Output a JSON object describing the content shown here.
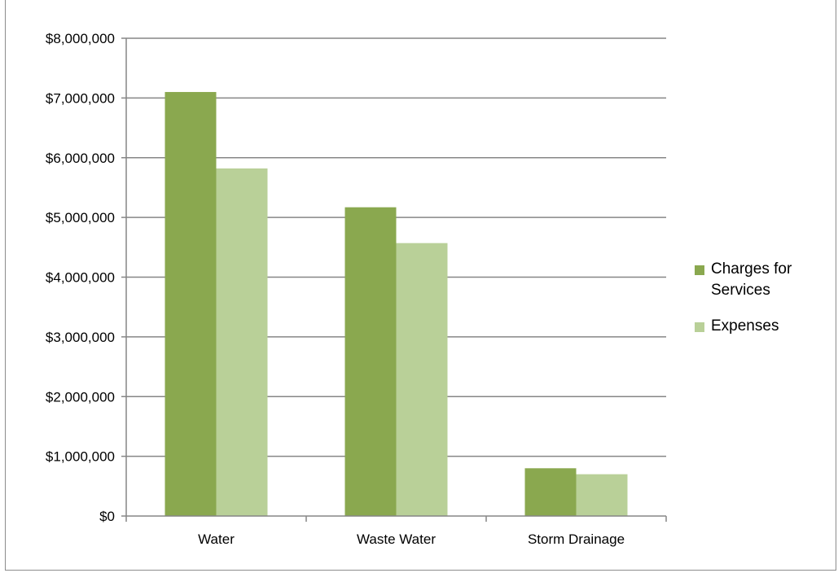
{
  "chart_data": {
    "type": "bar",
    "title": "",
    "xlabel": "",
    "ylabel": "",
    "categories": [
      "Water",
      "Waste Water",
      "Storm Drainage"
    ],
    "series": [
      {
        "name": "Charges for Services",
        "color": "#8aa84f",
        "values": [
          7100000,
          5170000,
          800000
        ]
      },
      {
        "name": "Expenses",
        "color": "#b9d098",
        "values": [
          5820000,
          4570000,
          700000
        ]
      }
    ],
    "ylim": [
      0,
      8000000
    ],
    "yticks": [
      0,
      1000000,
      2000000,
      3000000,
      4000000,
      5000000,
      6000000,
      7000000,
      8000000
    ],
    "ytick_labels": [
      "$0",
      "$1,000,000",
      "$2,000,000",
      "$3,000,000",
      "$4,000,000",
      "$5,000,000",
      "$6,000,000",
      "$7,000,000",
      "$8,000,000"
    ],
    "grid": true,
    "legend": "right"
  },
  "gridline_color": "#868686",
  "axis_color": "#868686"
}
